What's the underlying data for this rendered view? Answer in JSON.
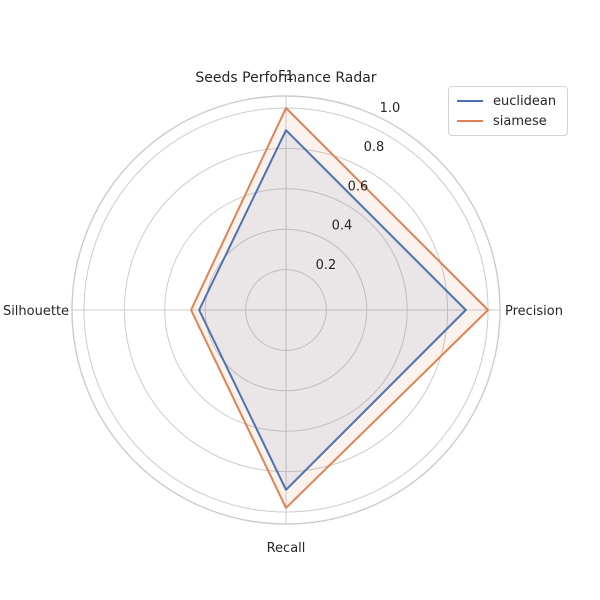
{
  "chart_data": {
    "type": "radar",
    "title": "Seeds Performance Radar",
    "axes": [
      "F1",
      "Precision",
      "Recall",
      "Silhouette"
    ],
    "rlim": [
      0,
      1.0
    ],
    "rticks": [
      0.2,
      0.4,
      0.6,
      0.8,
      1.0
    ],
    "rtick_labels": [
      "0.2",
      "0.4",
      "0.6",
      "0.8",
      "1.0"
    ],
    "grid": true,
    "legend_position": "top-right",
    "series": [
      {
        "name": "euclidean",
        "color": "#4c72b0",
        "values": [
          0.89,
          0.89,
          0.89,
          0.43
        ]
      },
      {
        "name": "siamese",
        "color": "#dd8452",
        "values": [
          1.0,
          1.0,
          0.98,
          0.47
        ]
      }
    ]
  }
}
